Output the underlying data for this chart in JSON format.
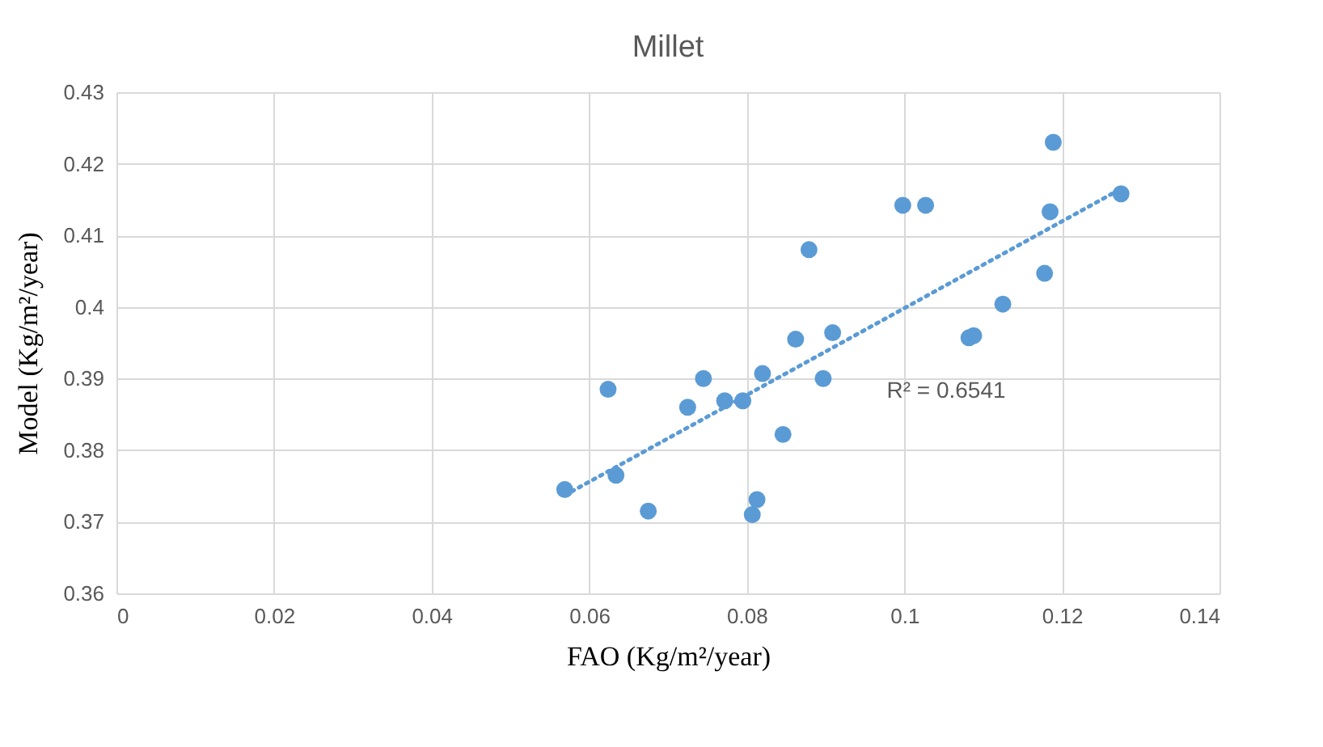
{
  "chart_data": {
    "type": "scatter",
    "title": "Millet",
    "xlabel": "FAO (Kg/m²/year)",
    "ylabel": "Model (Kg/m²/year)",
    "xlim": [
      0,
      0.14
    ],
    "xticks": [
      0,
      0.02,
      0.04,
      0.06,
      0.08,
      0.1,
      0.12,
      0.14
    ],
    "ylim": [
      0.36,
      0.43
    ],
    "yticks": [
      0.36,
      0.37,
      0.38,
      0.39,
      0.4,
      0.41,
      0.42,
      0.43
    ],
    "grid": true,
    "series": [
      {
        "marker": "circle",
        "color": "#5b9bd5",
        "x": [
          0.0569,
          0.0624,
          0.0634,
          0.0675,
          0.0725,
          0.0745,
          0.0772,
          0.0795,
          0.082,
          0.0813,
          0.0807,
          0.0846,
          0.0862,
          0.0879,
          0.0897,
          0.0909,
          0.0998,
          0.1027,
          0.1082,
          0.1088,
          0.1125,
          0.1178,
          0.1185,
          0.1189,
          0.1275
        ],
        "values": [
          0.3745,
          0.3885,
          0.3765,
          0.3715,
          0.386,
          0.39,
          0.3869,
          0.3869,
          0.3907,
          0.3731,
          0.371,
          0.3822,
          0.3955,
          0.408,
          0.39,
          0.3964,
          0.4142,
          0.4142,
          0.3957,
          0.396,
          0.4004,
          0.4047,
          0.4133,
          0.423,
          0.4158
        ]
      },
      {
        "type": "line",
        "color": "#5b9bd5",
        "line_style": "dotted",
        "x": [
          0.0569,
          0.1275
        ],
        "values": [
          0.3737,
          0.4165
        ]
      }
    ],
    "annotations": [
      "R² = 0.6541"
    ]
  }
}
